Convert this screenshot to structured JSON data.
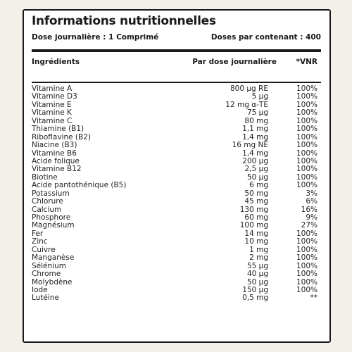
{
  "title": "Informations nutritionnelles",
  "daily_dose": "Dose journalière : 1 Comprimé",
  "doses_per_container": "Doses par contenant : 400",
  "headers": {
    "ingredients": "Ingrédients",
    "per_dose": "Par dose journalière",
    "vnr": "*VNR"
  },
  "rows": [
    {
      "name": "Vitamine A",
      "dose": "800 µg RE",
      "vnr": "100%"
    },
    {
      "name": "Vitamine D3",
      "dose": "5 µg",
      "vnr": "100%"
    },
    {
      "name": "Vitamine E",
      "dose": "12 mg α-TE",
      "vnr": "100%"
    },
    {
      "name": "Vitamine K",
      "dose": "75 µg",
      "vnr": "100%"
    },
    {
      "name": "Vitamine C",
      "dose": "80 mg",
      "vnr": "100%"
    },
    {
      "name": "Thiamine (B1)",
      "dose": "1,1 mg",
      "vnr": "100%"
    },
    {
      "name": "Riboflavine (B2)",
      "dose": "1,4 mg",
      "vnr": "100%"
    },
    {
      "name": "Niacine (B3)",
      "dose": "16 mg NE",
      "vnr": "100%"
    },
    {
      "name": "Vitamine B6",
      "dose": "1,4 mg",
      "vnr": "100%"
    },
    {
      "name": "Acide folique",
      "dose": "200 µg",
      "vnr": "100%"
    },
    {
      "name": "Vitamine B12",
      "dose": "2,5 µg",
      "vnr": "100%"
    },
    {
      "name": "Biotine",
      "dose": "50 µg",
      "vnr": "100%"
    },
    {
      "name": "Acide pantothénique (B5)",
      "dose": "6 mg",
      "vnr": "100%"
    },
    {
      "name": "Potassium",
      "dose": "50 mg",
      "vnr": "3%"
    },
    {
      "name": "Chlorure",
      "dose": "45 mg",
      "vnr": "6%"
    },
    {
      "name": "Calcium",
      "dose": "130 mg",
      "vnr": "16%"
    },
    {
      "name": "Phosphore",
      "dose": "60 mg",
      "vnr": "9%"
    },
    {
      "name": "Magnésium",
      "dose": "100 mg",
      "vnr": "27%"
    },
    {
      "name": "Fer",
      "dose": "14 mg",
      "vnr": "100%"
    },
    {
      "name": "Zinc",
      "dose": "10 mg",
      "vnr": "100%"
    },
    {
      "name": "Cuivre",
      "dose": "1 mg",
      "vnr": "100%"
    },
    {
      "name": "Manganèse",
      "dose": "2 mg",
      "vnr": "100%"
    },
    {
      "name": "Sélénium",
      "dose": "55 µg",
      "vnr": "100%"
    },
    {
      "name": "Chrome",
      "dose": "40 µg",
      "vnr": "100%"
    },
    {
      "name": "Molybdène",
      "dose": "50 µg",
      "vnr": "100%"
    },
    {
      "name": "Iode",
      "dose": "150 µg",
      "vnr": "100%"
    },
    {
      "name": "Lutéine",
      "dose": "0,5 mg",
      "vnr": "**"
    }
  ]
}
